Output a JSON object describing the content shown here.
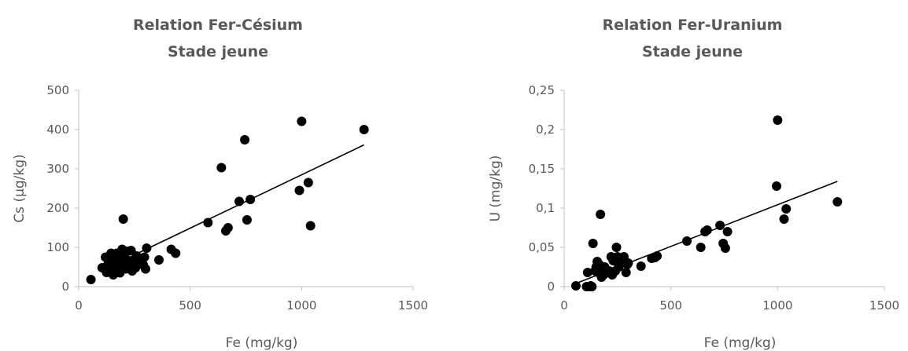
{
  "chart_data": [
    {
      "type": "scatter",
      "title_lines": [
        "Relation Fer-Césium",
        "Stade jeune"
      ],
      "xlabel": "Fe (mg/kg)",
      "ylabel": "Cs (µg/kg)",
      "xlim": [
        0,
        1500
      ],
      "ylim": [
        0,
        500
      ],
      "xticks": [
        "0",
        "500",
        "1000",
        "1500"
      ],
      "yticks": [
        "0",
        "100",
        "200",
        "300",
        "400",
        "500"
      ],
      "grid": false,
      "marker_color": "#000000",
      "trendline": {
        "x": [
          100,
          1280
        ],
        "y": [
          40,
          361
        ]
      },
      "points": [
        [
          55,
          18
        ],
        [
          105,
          48
        ],
        [
          120,
          75
        ],
        [
          125,
          36
        ],
        [
          130,
          55
        ],
        [
          140,
          40
        ],
        [
          145,
          85
        ],
        [
          150,
          60
        ],
        [
          155,
          30
        ],
        [
          160,
          70
        ],
        [
          165,
          45
        ],
        [
          170,
          85
        ],
        [
          175,
          62
        ],
        [
          180,
          52
        ],
        [
          185,
          35
        ],
        [
          190,
          75
        ],
        [
          195,
          95
        ],
        [
          200,
          172
        ],
        [
          205,
          58
        ],
        [
          210,
          45
        ],
        [
          215,
          68
        ],
        [
          220,
          90
        ],
        [
          225,
          50
        ],
        [
          230,
          62
        ],
        [
          235,
          92
        ],
        [
          240,
          40
        ],
        [
          245,
          55
        ],
        [
          250,
          68
        ],
        [
          255,
          48
        ],
        [
          260,
          78
        ],
        [
          265,
          58
        ],
        [
          270,
          65
        ],
        [
          280,
          72
        ],
        [
          290,
          55
        ],
        [
          295,
          75
        ],
        [
          300,
          45
        ],
        [
          305,
          98
        ],
        [
          360,
          68
        ],
        [
          415,
          95
        ],
        [
          435,
          85
        ],
        [
          580,
          163
        ],
        [
          640,
          303
        ],
        [
          660,
          142
        ],
        [
          670,
          150
        ],
        [
          720,
          217
        ],
        [
          745,
          374
        ],
        [
          755,
          170
        ],
        [
          770,
          222
        ],
        [
          990,
          245
        ],
        [
          1000,
          421
        ],
        [
          1030,
          265
        ],
        [
          1040,
          155
        ],
        [
          1280,
          400
        ]
      ]
    },
    {
      "type": "scatter",
      "title_lines": [
        "Relation Fer-Uranium",
        "Stade jeune"
      ],
      "xlabel": "Fe (mg/kg)",
      "ylabel": "U (mg/kg)",
      "xlim": [
        0,
        1500
      ],
      "ylim": [
        0,
        0.25
      ],
      "xticks": [
        "0",
        "500",
        "1000",
        "1500"
      ],
      "yticks": [
        "0",
        "0,05",
        "0,1",
        "0,15",
        "0,2",
        "0,25"
      ],
      "grid": false,
      "marker_color": "#000000",
      "trendline": {
        "x": [
          55,
          1280
        ],
        "y": [
          0.004,
          0.134
        ]
      },
      "points": [
        [
          55,
          0.001
        ],
        [
          105,
          0.0
        ],
        [
          120,
          0.0
        ],
        [
          125,
          0.001
        ],
        [
          130,
          0.0
        ],
        [
          110,
          0.018
        ],
        [
          135,
          0.055
        ],
        [
          145,
          0.02
        ],
        [
          150,
          0.025
        ],
        [
          155,
          0.032
        ],
        [
          160,
          0.018
        ],
        [
          165,
          0.028
        ],
        [
          170,
          0.092
        ],
        [
          175,
          0.012
        ],
        [
          180,
          0.022
        ],
        [
          185,
          0.015
        ],
        [
          190,
          0.025
        ],
        [
          200,
          0.018
        ],
        [
          210,
          0.02
        ],
        [
          220,
          0.038
        ],
        [
          225,
          0.015
        ],
        [
          230,
          0.033
        ],
        [
          240,
          0.02
        ],
        [
          245,
          0.05
        ],
        [
          250,
          0.038
        ],
        [
          255,
          0.025
        ],
        [
          260,
          0.03
        ],
        [
          270,
          0.035
        ],
        [
          280,
          0.038
        ],
        [
          290,
          0.018
        ],
        [
          295,
          0.028
        ],
        [
          300,
          0.03
        ],
        [
          360,
          0.026
        ],
        [
          410,
          0.036
        ],
        [
          425,
          0.037
        ],
        [
          435,
          0.039
        ],
        [
          575,
          0.058
        ],
        [
          640,
          0.05
        ],
        [
          660,
          0.07
        ],
        [
          670,
          0.072
        ],
        [
          730,
          0.078
        ],
        [
          745,
          0.055
        ],
        [
          755,
          0.049
        ],
        [
          765,
          0.07
        ],
        [
          995,
          0.128
        ],
        [
          1000,
          0.212
        ],
        [
          1030,
          0.086
        ],
        [
          1040,
          0.099
        ],
        [
          1280,
          0.108
        ]
      ]
    }
  ]
}
